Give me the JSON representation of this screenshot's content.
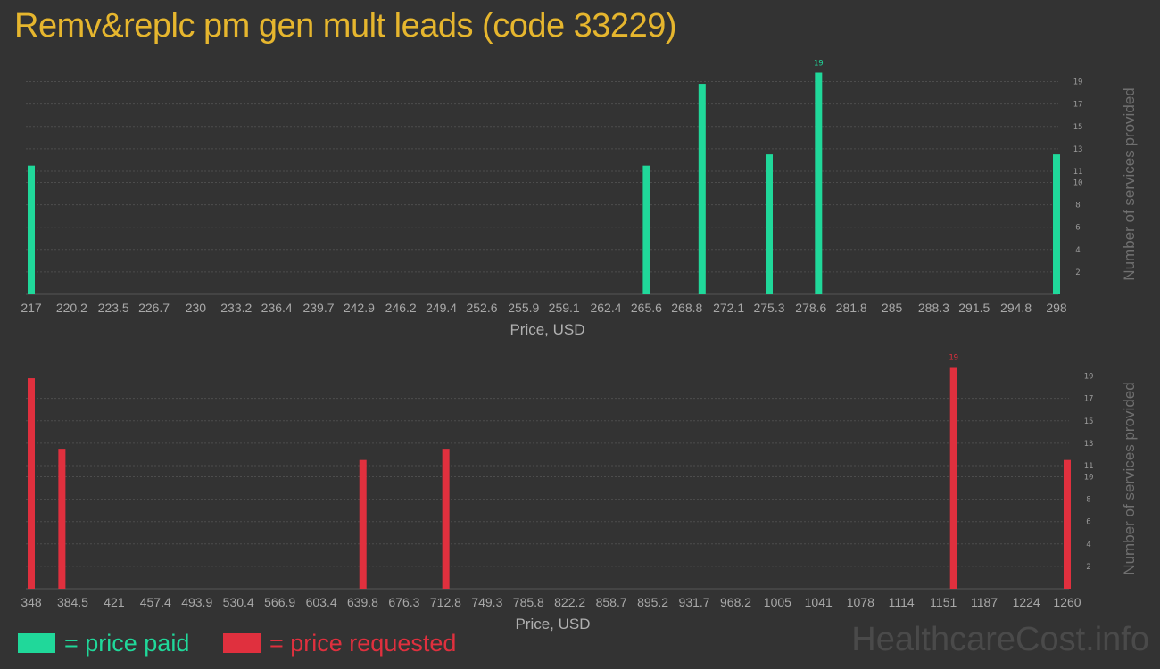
{
  "title": "Remv&replc pm gen mult leads (code 33229)",
  "watermark": "HealthcareCost.info",
  "legend": {
    "paid": {
      "label": "= price paid",
      "color": "#20d89a"
    },
    "requested": {
      "label": "= price requested",
      "color": "#e0303e"
    }
  },
  "chart_data": [
    {
      "type": "bar",
      "name": "price paid",
      "color": "#20d89a",
      "xlabel": "Price, USD",
      "ylabel": "Number of services provided",
      "ylim": [
        0,
        20
      ],
      "y_ticks": [
        "2",
        "4",
        "6",
        "8",
        "10",
        "11",
        "13",
        "15",
        "17",
        "19"
      ],
      "x_tick_labels": [
        "217",
        "220.2",
        "223.5",
        "226.7",
        "230",
        "233.2",
        "236.4",
        "239.7",
        "242.9",
        "246.2",
        "249.4",
        "252.6",
        "255.9",
        "259.1",
        "262.4",
        "265.6",
        "268.8",
        "272.1",
        "275.3",
        "278.6",
        "281.8",
        "285",
        "288.3",
        "291.5",
        "294.8",
        "298"
      ],
      "bars": [
        {
          "x": 217,
          "value": 11.5
        },
        {
          "x": 265.6,
          "value": 11.5
        },
        {
          "x": 270,
          "value": 18.8
        },
        {
          "x": 275.3,
          "value": 12.5
        },
        {
          "x": 279.2,
          "value": 19.8,
          "label": "19"
        },
        {
          "x": 298,
          "value": 12.5
        }
      ],
      "grid": true
    },
    {
      "type": "bar",
      "name": "price requested",
      "color": "#e0303e",
      "xlabel": "Price, USD",
      "ylabel": "Number of services provided",
      "ylim": [
        0,
        20
      ],
      "y_ticks": [
        "2",
        "4",
        "6",
        "8",
        "10",
        "11",
        "13",
        "15",
        "17",
        "19"
      ],
      "x_tick_labels": [
        "348",
        "384.5",
        "421",
        "457.4",
        "493.9",
        "530.4",
        "566.9",
        "603.4",
        "639.8",
        "676.3",
        "712.8",
        "749.3",
        "785.8",
        "822.2",
        "858.7",
        "895.2",
        "931.7",
        "968.2",
        "1005",
        "1041",
        "1078",
        "1114",
        "1151",
        "1187",
        "1224",
        "1260"
      ],
      "bars": [
        {
          "x": 348,
          "value": 18.8
        },
        {
          "x": 375,
          "value": 12.5
        },
        {
          "x": 640,
          "value": 11.5
        },
        {
          "x": 713,
          "value": 12.5
        },
        {
          "x": 1160,
          "value": 19.8,
          "label": "19"
        },
        {
          "x": 1260,
          "value": 11.5
        }
      ],
      "grid": true
    }
  ]
}
